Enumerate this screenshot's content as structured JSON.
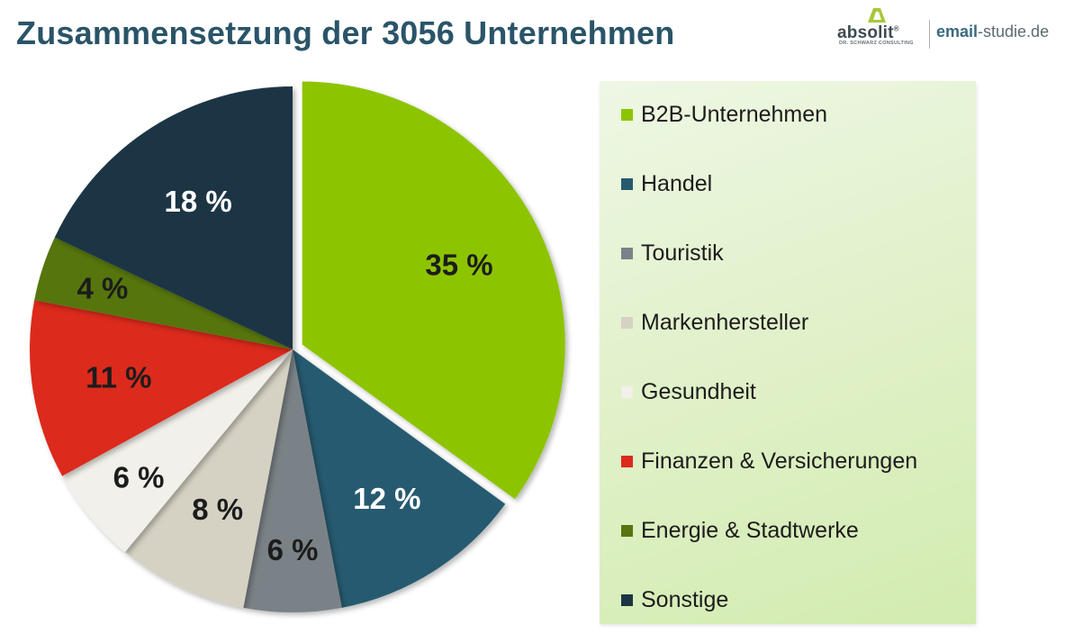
{
  "title": "Zusammensetzung der 3056 Unternehmen",
  "logo": {
    "brand": "absolit",
    "brand_mark": "®",
    "sub": "DR. SCHWARZ CONSULTING",
    "site_bold": "email",
    "site_rest": "-studie.de"
  },
  "chart_data": {
    "type": "pie",
    "title": "Zusammensetzung der 3056 Unternehmen",
    "legend_position": "right",
    "slices": [
      {
        "label": "B2B-Unternehmen",
        "value": 35,
        "display": "35 %",
        "color": "#8dc400",
        "label_color": "#1c1c1c",
        "exploded": true
      },
      {
        "label": "Handel",
        "value": 12,
        "display": "12 %",
        "color": "#285a6f",
        "label_color": "#ffffff"
      },
      {
        "label": "Touristik",
        "value": 6,
        "display": "6 %",
        "color": "#7a8287",
        "label_color": "#1c1c1c"
      },
      {
        "label": "Markenhersteller",
        "value": 8,
        "display": "8 %",
        "color": "#d5d1c3",
        "label_color": "#1c1c1c"
      },
      {
        "label": "Gesundheit",
        "value": 6,
        "display": "6 %",
        "color": "#f1f0ea",
        "label_color": "#1c1c1c"
      },
      {
        "label": "Finanzen & Versicherungen",
        "value": 11,
        "display": "11 %",
        "color": "#dc2a1c",
        "label_color": "#1c1c1c"
      },
      {
        "label": "Energie & Stadtwerke",
        "value": 4,
        "display": "4 %",
        "color": "#577410",
        "label_color": "#1c1c1c"
      },
      {
        "label": "Sonstige",
        "value": 18,
        "display": "18 %",
        "color": "#1b3545",
        "label_color": "#ffffff"
      }
    ]
  }
}
